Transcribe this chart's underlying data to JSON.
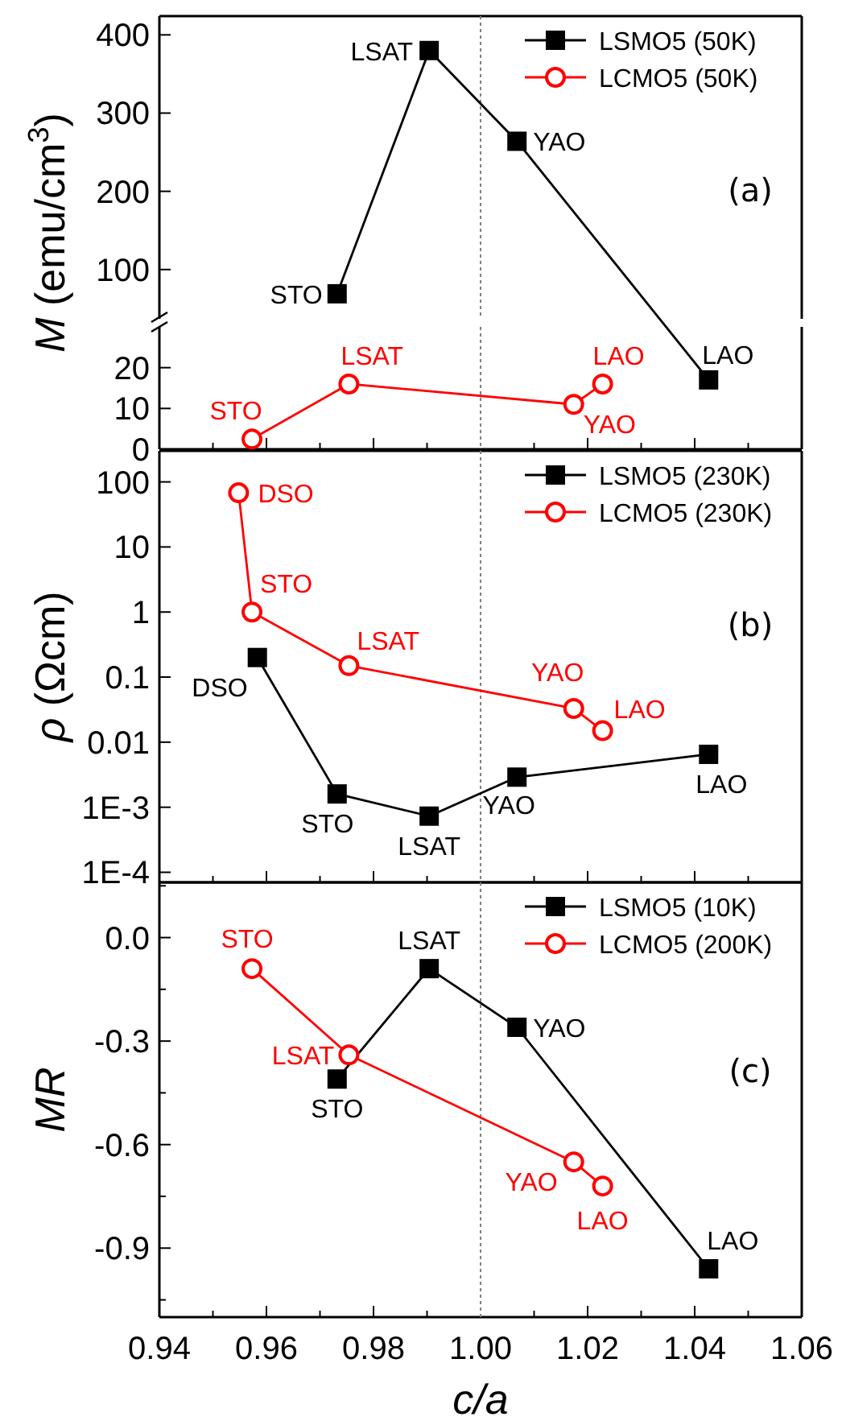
{
  "chart_data": [
    {
      "type": "line",
      "ylabel": "M (emu/cm$^{3}$)",
      "xlim": [
        0.94,
        1.06
      ],
      "ylim": [
        37,
        424
      ],
      "yticks": [
        100,
        200,
        300,
        400
      ],
      "tick_labels": "y",
      "legend": "top right",
      "series": [
        {
          "name": "LSMO5 (50K)",
          "color": "#000000",
          "marker": "square",
          "x": [
            0.9732,
            0.9904,
            1.0068
          ],
          "values": [
            69,
            380,
            264
          ]
        },
        {
          "name": "LCMO5 (50K)",
          "color": "#ff0000",
          "marker": "circle"
        }
      ],
      "ref_lines": [
        {
          "axis": "x",
          "value": 1,
          "color": "#808080",
          "line_style": "dotted"
        }
      ],
      "annotations": [
        {
          "text": "STO",
          "x": 0.9732,
          "y": 69
        },
        {
          "text": "LSAT",
          "x": 0.9904,
          "y": 380
        },
        {
          "text": "YAO",
          "x": 1.0068,
          "y": 264
        },
        "(a)"
      ]
    },
    {
      "type": "line",
      "xlim": [
        0.94,
        1.06
      ],
      "xticks": [
        0.94,
        {
          "value": 0.95,
          "label": null
        },
        0.96,
        {
          "value": 0.97,
          "label": null
        },
        0.98,
        {
          "value": 0.99,
          "label": null
        },
        1,
        {
          "value": 1.01,
          "label": null
        },
        1.02,
        {
          "value": 1.03,
          "label": null
        },
        1.04,
        {
          "value": 1.05,
          "label": null
        },
        1.06
      ],
      "ylim": [
        0,
        30
      ],
      "yticks": [
        0,
        10,
        20
      ],
      "tick_labels": "y",
      "series": [
        {
          "color": "#000000",
          "marker": "square",
          "x": [
            1.0426
          ],
          "values": [
            17
          ]
        },
        {
          "color": "#ff0000",
          "marker": "circle",
          "x": [
            0.9573,
            0.9754,
            1.0174,
            1.0228
          ],
          "values": [
            2.5,
            16,
            11,
            16
          ]
        }
      ],
      "ref_lines": [
        {
          "axis": "x",
          "value": 1,
          "color": "#808080",
          "line_style": "dotted"
        }
      ],
      "annotations": [
        {
          "text": "LAO",
          "x": 1.0426,
          "y": 17
        },
        {
          "text": "STO",
          "x": 0.9573,
          "y": 2.5
        },
        {
          "text": "LSAT",
          "x": 0.9754,
          "y": 16
        },
        {
          "text": "YAO",
          "x": 1.0174,
          "y": 11
        },
        {
          "text": "LAO",
          "x": 1.0228,
          "y": 16
        }
      ]
    },
    {
      "type": "line",
      "ylabel": "ρ (Ωcm)",
      "log": true,
      "xlim": [
        0.94,
        1.06
      ],
      "xticks": [
        0.94,
        {
          "value": 0.95,
          "label": null
        },
        0.96,
        {
          "value": 0.97,
          "label": null
        },
        0.98,
        {
          "value": 0.99,
          "label": null
        },
        1,
        {
          "value": 1.01,
          "label": null
        },
        1.02,
        {
          "value": 1.03,
          "label": null
        },
        1.04,
        {
          "value": 1.05,
          "label": null
        },
        1.06
      ],
      "ylim": [
        7e-05,
        300
      ],
      "yticks": [
        {
          "value": 0.0001,
          "label": "1E-4"
        },
        {
          "value": 0.001,
          "label": "1E-3"
        },
        0.01,
        0.1,
        1,
        10,
        100
      ],
      "tick_labels": "y",
      "legend": "top right",
      "series": [
        {
          "name": "LSMO5 (230K)",
          "color": "#000000",
          "marker": "square",
          "x": [
            0.9583,
            0.9732,
            0.9904,
            1.0068,
            1.0426
          ],
          "values": [
            0.2,
            0.0016,
            0.00073,
            0.0029,
            0.0065
          ]
        },
        {
          "name": "LCMO5 (230K)",
          "color": "#ff0000",
          "marker": "circle",
          "x": [
            0.9548,
            0.9573,
            0.9754,
            1.0174,
            1.0228
          ],
          "values": [
            68,
            1,
            0.15,
            0.033,
            0.015
          ]
        }
      ],
      "ref_lines": [
        {
          "axis": "x",
          "value": 1,
          "color": "#808080",
          "line_style": "dotted"
        }
      ],
      "annotations": [
        {
          "text": "DSO",
          "x": 0.9548,
          "y": 68
        },
        {
          "text": "STO",
          "x": 0.9573,
          "y": 1
        },
        {
          "text": "LSAT",
          "x": 0.9754,
          "y": 0.15
        },
        {
          "text": "YAO",
          "x": 1.0174,
          "y": 0.033
        },
        {
          "text": "LAO",
          "x": 1.0228,
          "y": 0.015
        },
        {
          "text": "DSO",
          "x": 0.9583,
          "y": 0.2
        },
        {
          "text": "STO",
          "x": 0.9732,
          "y": 0.0016
        },
        {
          "text": "LSAT",
          "x": 0.9904,
          "y": 0.00073
        },
        {
          "text": "YAO",
          "x": 1.0068,
          "y": 0.0029
        },
        {
          "text": "LAO",
          "x": 1.0426,
          "y": 0.0065
        },
        "(b)"
      ]
    },
    {
      "type": "line",
      "ylabel": "MR",
      "xlabel": "c/a",
      "xlim": [
        0.94,
        1.06
      ],
      "xticks": [
        0.94,
        {
          "value": 0.95,
          "label": null
        },
        0.96,
        {
          "value": 0.97,
          "label": null
        },
        0.98,
        {
          "value": 0.99,
          "label": null
        },
        {
          "value": 1,
          "label": "1.00"
        },
        {
          "value": 1.01,
          "label": null
        },
        1.02,
        {
          "value": 1.03,
          "label": null
        },
        1.04,
        {
          "value": 1.05,
          "label": null
        },
        1.06
      ],
      "ylim": [
        -1.1,
        0.16
      ],
      "yticks": [
        {
          "value": 0.15,
          "label": null
        },
        {
          "value": 0,
          "label": "0.0"
        },
        {
          "value": -0.15,
          "label": null
        },
        {
          "value": -0.3,
          "label": "-0.3"
        },
        {
          "value": -0.45,
          "label": null
        },
        {
          "value": -0.6,
          "label": "-0.6"
        },
        {
          "value": -0.75,
          "label": null
        },
        {
          "value": -0.9,
          "label": "-0.9"
        },
        {
          "value": -1.05,
          "label": null
        }
      ],
      "legend": "top right",
      "series": [
        {
          "name": "LSMO5 (10K)",
          "color": "#000000",
          "marker": "square",
          "x": [
            0.9732,
            0.9904,
            1.0068,
            1.0426
          ],
          "values": [
            -0.41,
            -0.09,
            -0.26,
            -0.96
          ]
        },
        {
          "name": "LCMO5 (200K)",
          "color": "#ff0000",
          "marker": "circle",
          "x": [
            0.9573,
            0.9754,
            1.0174,
            1.0228
          ],
          "values": [
            -0.09,
            -0.34,
            -0.65,
            -0.72
          ]
        }
      ],
      "ref_lines": [
        {
          "axis": "x",
          "value": 1,
          "color": "#808080",
          "line_style": "dotted"
        }
      ],
      "annotations": [
        {
          "text": "STO",
          "x": 0.9573,
          "y": -0.09
        },
        {
          "text": "LSAT",
          "x": 0.9754,
          "y": -0.34
        },
        {
          "text": "YAO",
          "x": 1.0174,
          "y": -0.65
        },
        {
          "text": "LAO",
          "x": 1.0228,
          "y": -0.72
        },
        {
          "text": "LSAT",
          "x": 0.9904,
          "y": -0.09
        },
        {
          "text": "STO",
          "x": 0.9732,
          "y": -0.41
        },
        {
          "text": "YAO",
          "x": 1.0068,
          "y": -0.26
        },
        {
          "text": "LAO",
          "x": 1.0426,
          "y": -0.96
        },
        "(c)"
      ]
    }
  ]
}
